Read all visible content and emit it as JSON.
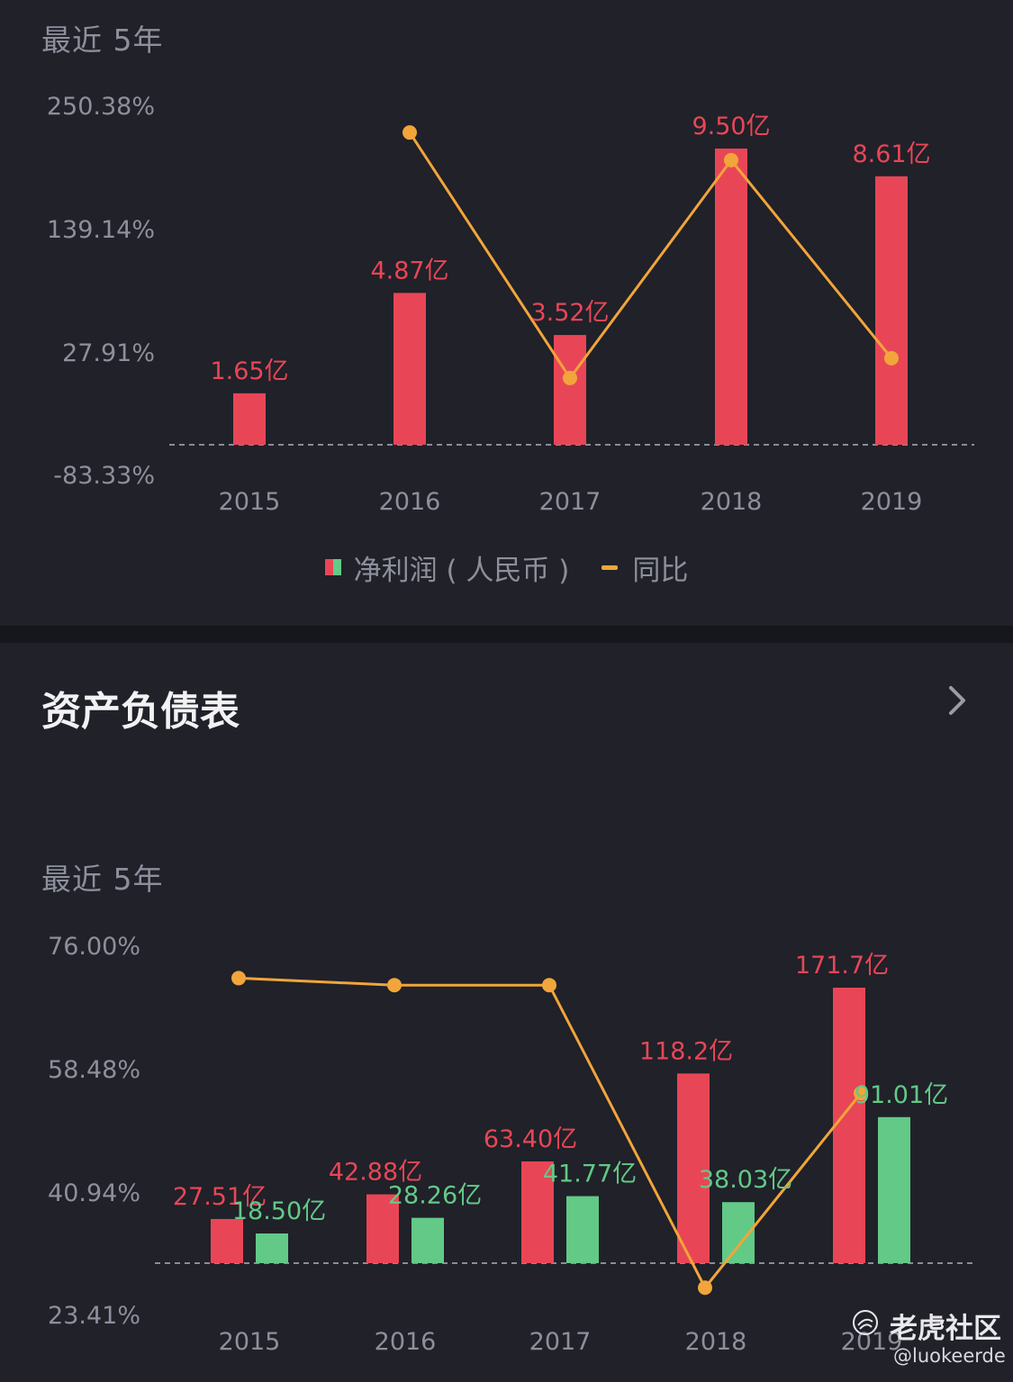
{
  "colors": {
    "red": "#e84656",
    "green": "#63c987",
    "orange": "#f2a53a",
    "axis_text": "#8d8f9c",
    "panel_bg": "#202129",
    "baseline": "#8a8c97"
  },
  "top_panel": {
    "period_label": "最近 5年",
    "legend": {
      "bar_label": "净利润 ( 人民币 )",
      "line_label": "同比"
    }
  },
  "bottom_panel": {
    "section_title": "资产负债表",
    "chevron_icon": "chevron-right-icon",
    "period_label": "最近 5年"
  },
  "watermark": {
    "logo_icon": "tiger-logo-icon",
    "name": "老虎社区",
    "handle": "@luokeerde"
  },
  "chart_data": [
    {
      "type": "bar",
      "categories": [
        "2015",
        "2016",
        "2017",
        "2018",
        "2019"
      ],
      "y_ticks": [
        "250.38%",
        "139.14%",
        "27.91%",
        "-83.33%"
      ],
      "series": [
        {
          "name": "净利润 ( 人民币 )",
          "kind": "bar",
          "color": "#e84656",
          "values": [
            1.65,
            4.87,
            3.52,
            9.5,
            8.61
          ],
          "labels": [
            "1.65亿",
            "4.87亿",
            "3.52亿",
            "9.50亿",
            "8.61亿"
          ]
        },
        {
          "name": "同比",
          "kind": "line",
          "color": "#f2a53a",
          "values": [
            null,
            225,
            3,
            200,
            21
          ]
        }
      ],
      "bar_ylim": [
        0,
        10.8
      ],
      "line_ylim": [
        -83.33,
        250.38
      ],
      "legend_position": "bottom-center"
    },
    {
      "type": "bar",
      "categories": [
        "2015",
        "2016",
        "2017",
        "2018",
        "2019"
      ],
      "y_ticks": [
        "76.00%",
        "58.48%",
        "40.94%",
        "23.41%"
      ],
      "series": [
        {
          "kind": "bar",
          "color": "#e84656",
          "values": [
            27.51,
            42.88,
            63.4,
            118.2,
            171.7
          ],
          "labels": [
            "27.51亿",
            "42.88亿",
            "63.40亿",
            "118.2亿",
            "171.7亿"
          ]
        },
        {
          "kind": "bar",
          "color": "#63c987",
          "values": [
            18.5,
            28.26,
            41.77,
            38.03,
            91.01
          ],
          "labels": [
            "18.50亿",
            "28.26亿",
            "41.77亿",
            "38.03亿",
            "91.01亿"
          ]
        },
        {
          "kind": "line",
          "color": "#f2a53a",
          "values": [
            71.2,
            70.2,
            70.2,
            27.1,
            54.8
          ]
        }
      ],
      "bar_ylim": [
        0,
        171.7
      ],
      "line_ylim": [
        23.41,
        76.0
      ]
    }
  ]
}
